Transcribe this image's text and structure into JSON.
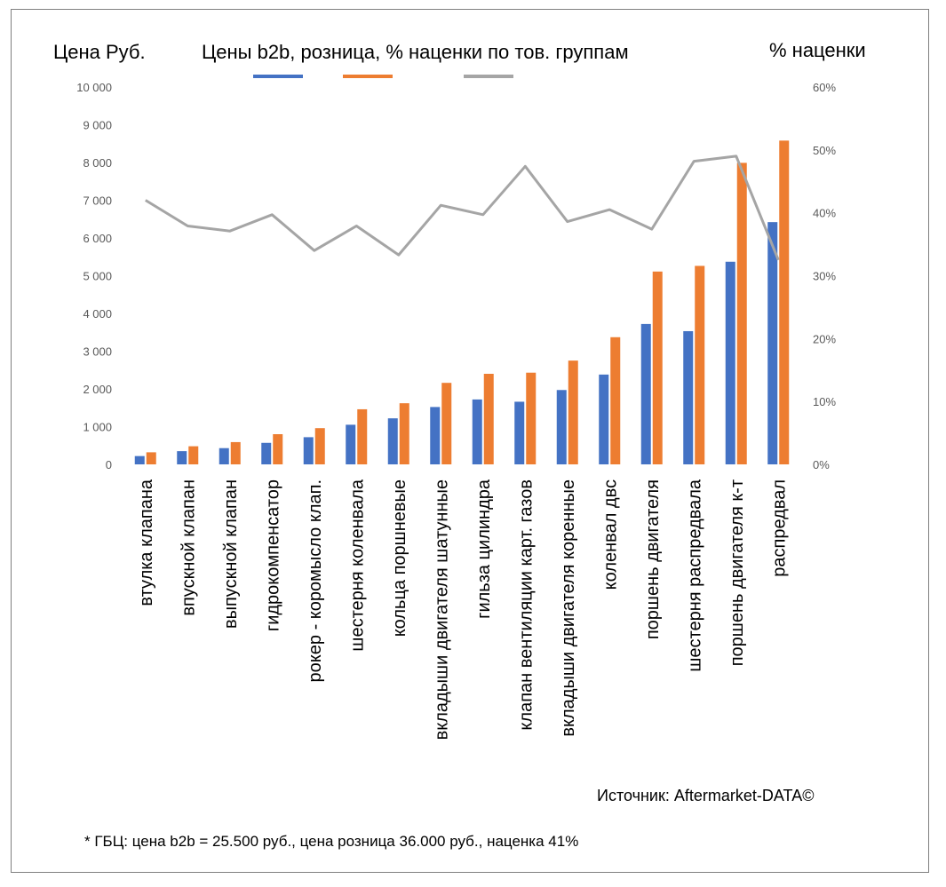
{
  "labels": {
    "left_axis_title": "Цена Руб.",
    "title": "Цены b2b, розница, % наценки по тов. группам",
    "right_axis_title": "% наценки",
    "source": "Источник: Aftermarket-DATA©",
    "footnote": "* ГБЦ: цена b2b = 25.500 руб., цена розница 36.000 руб., наценка 41%"
  },
  "colors": {
    "b2b": "#4472C4",
    "retail": "#ED7D31",
    "markup": "#A5A5A5",
    "tick_text": "#595959",
    "frame": "#7F7F7F"
  },
  "chart_data": {
    "type": "bar",
    "title": "Цены b2b, розница, % наценки по тов. группам",
    "ylabel": "Цена Руб.",
    "y2label": "% наценки",
    "categories": [
      "втулка клапана",
      "впускной клапан",
      "выпускной клапан",
      "гидрокомпенсатор",
      "рокер - коромысло клап.",
      "шестерня коленвала",
      "кольца поршневые",
      "вкладыши двигателя шатунные",
      "гильза цилиндра",
      "клапан вентиляции карт. газов",
      "вкладыши двигателя коренные",
      "коленвал двс",
      "поршень двигателя",
      "шестерня распредвала",
      "поршень двигателя к-т",
      "распредвал"
    ],
    "series": [
      {
        "key": "b2b",
        "type": "bar",
        "axis": "left",
        "values": [
          220,
          350,
          430,
          570,
          720,
          1050,
          1220,
          1520,
          1720,
          1660,
          1970,
          2380,
          3720,
          3530,
          5370,
          6420
        ]
      },
      {
        "key": "retail",
        "type": "bar",
        "axis": "left",
        "values": [
          320,
          480,
          590,
          800,
          960,
          1460,
          1620,
          2160,
          2400,
          2430,
          2750,
          3370,
          5110,
          5260,
          7990,
          8580
        ]
      },
      {
        "key": "markup",
        "type": "line",
        "axis": "right",
        "values": [
          42.0,
          37.9,
          37.1,
          39.7,
          34.0,
          37.9,
          33.3,
          41.2,
          39.7,
          47.4,
          38.6,
          40.5,
          37.4,
          48.2,
          49.0,
          32.5
        ]
      }
    ],
    "ylim": [
      0,
      10000
    ],
    "yticks": [
      "0",
      "1 000",
      "2 000",
      "3 000",
      "4 000",
      "5 000",
      "6 000",
      "7 000",
      "8 000",
      "9 000",
      "10 000"
    ],
    "y2lim": [
      0,
      60
    ],
    "y2ticks": [
      "0%",
      "10%",
      "20%",
      "30%",
      "40%",
      "50%",
      "60%"
    ],
    "legend": "top, under title (no text labels)",
    "grid": false
  }
}
